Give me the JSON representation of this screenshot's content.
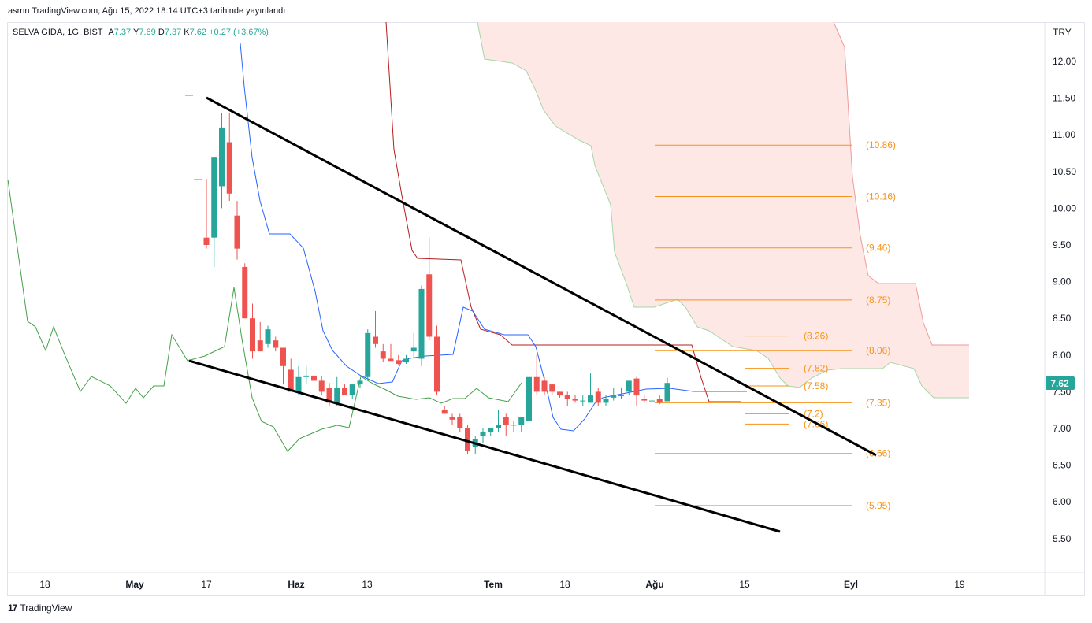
{
  "header": {
    "publish_line": "asrnn TradingView.com, Ağu 15, 2022 18:14 UTC+3 tarihinde yayınlandı"
  },
  "legend": {
    "symbol": "SELVA GIDA, 1G, BIST",
    "open_label": "A",
    "open": "7.37",
    "high_label": "Y",
    "high": "7.69",
    "low_label": "D",
    "low": "7.37",
    "close_label": "K",
    "close": "7.62",
    "change": "+0.27 (+3.67%)"
  },
  "currency": "TRY",
  "last_price": "7.62",
  "footer": {
    "brand": "TradingView",
    "logo_icon": "tradingview-logo-icon"
  },
  "colors": {
    "up": "#26a69a",
    "down": "#ef5350",
    "fib": "#f7931a",
    "cloud": "#fde8e6",
    "kijun": "#b71c1c",
    "tenkan": "#2962ff",
    "lagging": "#43a047",
    "trendline": "#000000"
  },
  "chart_data": {
    "type": "candlestick",
    "y_axis": {
      "min": 5.25,
      "max": 12.45,
      "ticks": [
        "5.50",
        "6.00",
        "6.50",
        "7.00",
        "7.50",
        "8.00",
        "8.50",
        "9.00",
        "9.50",
        "10.00",
        "10.50",
        "11.00",
        "11.50",
        "12.00"
      ]
    },
    "x_axis": {
      "ticks": [
        "18",
        "May",
        "17",
        "Haz",
        "13",
        "Tem",
        "18",
        "Ağu",
        "15",
        "Eyl",
        "19"
      ]
    },
    "candles": [
      {
        "o": 9.6,
        "h": 10.4,
        "l": 9.45,
        "c": 9.5
      },
      {
        "o": 9.6,
        "h": 10.7,
        "l": 9.2,
        "c": 10.7
      },
      {
        "o": 10.3,
        "h": 11.3,
        "l": 10.0,
        "c": 11.1
      },
      {
        "o": 10.9,
        "h": 11.3,
        "l": 10.1,
        "c": 10.2
      },
      {
        "o": 9.9,
        "h": 10.1,
        "l": 9.3,
        "c": 9.45
      },
      {
        "o": 9.2,
        "h": 9.25,
        "l": 8.5,
        "c": 8.5
      },
      {
        "o": 8.5,
        "h": 8.7,
        "l": 7.95,
        "c": 8.05
      },
      {
        "o": 8.2,
        "h": 8.45,
        "l": 8.1,
        "c": 8.05
      },
      {
        "o": 8.15,
        "h": 8.4,
        "l": 8.1,
        "c": 8.35
      },
      {
        "o": 8.2,
        "h": 8.25,
        "l": 8.05,
        "c": 8.1
      },
      {
        "o": 8.1,
        "h": 8.1,
        "l": 7.6,
        "c": 7.85
      },
      {
        "o": 7.8,
        "h": 7.95,
        "l": 7.5,
        "c": 7.5
      },
      {
        "o": 7.5,
        "h": 7.85,
        "l": 7.45,
        "c": 7.7
      },
      {
        "o": 7.7,
        "h": 7.85,
        "l": 7.6,
        "c": 7.72
      },
      {
        "o": 7.72,
        "h": 7.75,
        "l": 7.6,
        "c": 7.65
      },
      {
        "o": 7.65,
        "h": 7.72,
        "l": 7.45,
        "c": 7.5
      },
      {
        "o": 7.55,
        "h": 7.62,
        "l": 7.3,
        "c": 7.35
      },
      {
        "o": 7.35,
        "h": 7.7,
        "l": 7.3,
        "c": 7.55
      },
      {
        "o": 7.55,
        "h": 7.6,
        "l": 7.45,
        "c": 7.45
      },
      {
        "o": 7.45,
        "h": 7.6,
        "l": 7.4,
        "c": 7.6
      },
      {
        "o": 7.6,
        "h": 7.65,
        "l": 7.55,
        "c": 7.65
      },
      {
        "o": 7.7,
        "h": 8.35,
        "l": 7.65,
        "c": 8.3
      },
      {
        "o": 8.25,
        "h": 8.6,
        "l": 8.1,
        "c": 8.15
      },
      {
        "o": 8.05,
        "h": 8.15,
        "l": 7.9,
        "c": 7.95
      },
      {
        "o": 7.95,
        "h": 8.15,
        "l": 7.92,
        "c": 7.92
      },
      {
        "o": 7.93,
        "h": 8.0,
        "l": 7.87,
        "c": 7.88
      },
      {
        "o": 7.9,
        "h": 8.0,
        "l": 7.88,
        "c": 7.95
      },
      {
        "o": 8.05,
        "h": 8.3,
        "l": 7.95,
        "c": 8.1
      },
      {
        "o": 7.95,
        "h": 8.95,
        "l": 7.85,
        "c": 8.9
      },
      {
        "o": 9.1,
        "h": 9.6,
        "l": 8.2,
        "c": 8.25
      },
      {
        "o": 8.25,
        "h": 8.4,
        "l": 7.45,
        "c": 7.5
      },
      {
        "o": 7.25,
        "h": 7.3,
        "l": 7.2,
        "c": 7.2
      },
      {
        "o": 7.15,
        "h": 7.2,
        "l": 7.05,
        "c": 7.12
      },
      {
        "o": 7.15,
        "h": 7.2,
        "l": 6.95,
        "c": 7.0
      },
      {
        "o": 7.0,
        "h": 7.05,
        "l": 6.65,
        "c": 6.7
      },
      {
        "o": 6.75,
        "h": 6.9,
        "l": 6.65,
        "c": 6.85
      },
      {
        "o": 6.9,
        "h": 7.0,
        "l": 6.8,
        "c": 6.95
      },
      {
        "o": 6.95,
        "h": 7.0,
        "l": 6.9,
        "c": 7.0
      },
      {
        "o": 7.0,
        "h": 7.25,
        "l": 6.95,
        "c": 7.05
      },
      {
        "o": 7.15,
        "h": 7.2,
        "l": 6.9,
        "c": 7.05
      },
      {
        "o": 7.05,
        "h": 7.1,
        "l": 6.95,
        "c": 7.05
      },
      {
        "o": 7.05,
        "h": 7.15,
        "l": 6.95,
        "c": 7.15
      },
      {
        "o": 7.1,
        "h": 7.7,
        "l": 7.0,
        "c": 7.7
      },
      {
        "o": 7.7,
        "h": 8.0,
        "l": 7.45,
        "c": 7.5
      },
      {
        "o": 7.65,
        "h": 7.7,
        "l": 7.45,
        "c": 7.5
      },
      {
        "o": 7.6,
        "h": 7.6,
        "l": 7.45,
        "c": 7.5
      },
      {
        "o": 7.5,
        "h": 7.5,
        "l": 7.42,
        "c": 7.45
      },
      {
        "o": 7.45,
        "h": 7.5,
        "l": 7.3,
        "c": 7.4
      },
      {
        "o": 7.4,
        "h": 7.45,
        "l": 7.35,
        "c": 7.38
      },
      {
        "o": 7.38,
        "h": 7.45,
        "l": 7.3,
        "c": 7.38
      },
      {
        "o": 7.35,
        "h": 7.75,
        "l": 7.35,
        "c": 7.45
      },
      {
        "o": 7.5,
        "h": 7.55,
        "l": 7.3,
        "c": 7.35
      },
      {
        "o": 7.35,
        "h": 7.45,
        "l": 7.3,
        "c": 7.4
      },
      {
        "o": 7.42,
        "h": 7.55,
        "l": 7.38,
        "c": 7.45
      },
      {
        "o": 7.45,
        "h": 7.55,
        "l": 7.4,
        "c": 7.45
      },
      {
        "o": 7.5,
        "h": 7.65,
        "l": 7.45,
        "c": 7.65
      },
      {
        "o": 7.68,
        "h": 7.7,
        "l": 7.3,
        "c": 7.45
      },
      {
        "o": 7.4,
        "h": 7.45,
        "l": 7.35,
        "c": 7.38
      },
      {
        "o": 7.38,
        "h": 7.45,
        "l": 7.35,
        "c": 7.38
      },
      {
        "o": 7.4,
        "h": 7.45,
        "l": 7.33,
        "c": 7.35
      },
      {
        "o": 7.37,
        "h": 7.69,
        "l": 7.37,
        "c": 7.62
      }
    ],
    "fib_levels": [
      {
        "label": "(10.86)",
        "value": 10.86,
        "extent": "long"
      },
      {
        "label": "(10.16)",
        "value": 10.16,
        "extent": "long"
      },
      {
        "label": "(9.46)",
        "value": 9.46,
        "extent": "long"
      },
      {
        "label": "(8.75)",
        "value": 8.75,
        "extent": "long"
      },
      {
        "label": "(8.26)",
        "value": 8.26,
        "extent": "short"
      },
      {
        "label": "(8.06)",
        "value": 8.06,
        "extent": "long"
      },
      {
        "label": "(7.82)",
        "value": 7.82,
        "extent": "short"
      },
      {
        "label": "(7.58)",
        "value": 7.58,
        "extent": "short"
      },
      {
        "label": "(7.35)",
        "value": 7.35,
        "extent": "long"
      },
      {
        "label": "(7.2)",
        "value": 7.2,
        "extent": "short"
      },
      {
        "label": "(7.06)",
        "value": 7.06,
        "extent": "short"
      },
      {
        "label": "(6.66)",
        "value": 6.66,
        "extent": "long"
      },
      {
        "label": "(5.95)",
        "value": 5.95,
        "extent": "long"
      }
    ]
  }
}
